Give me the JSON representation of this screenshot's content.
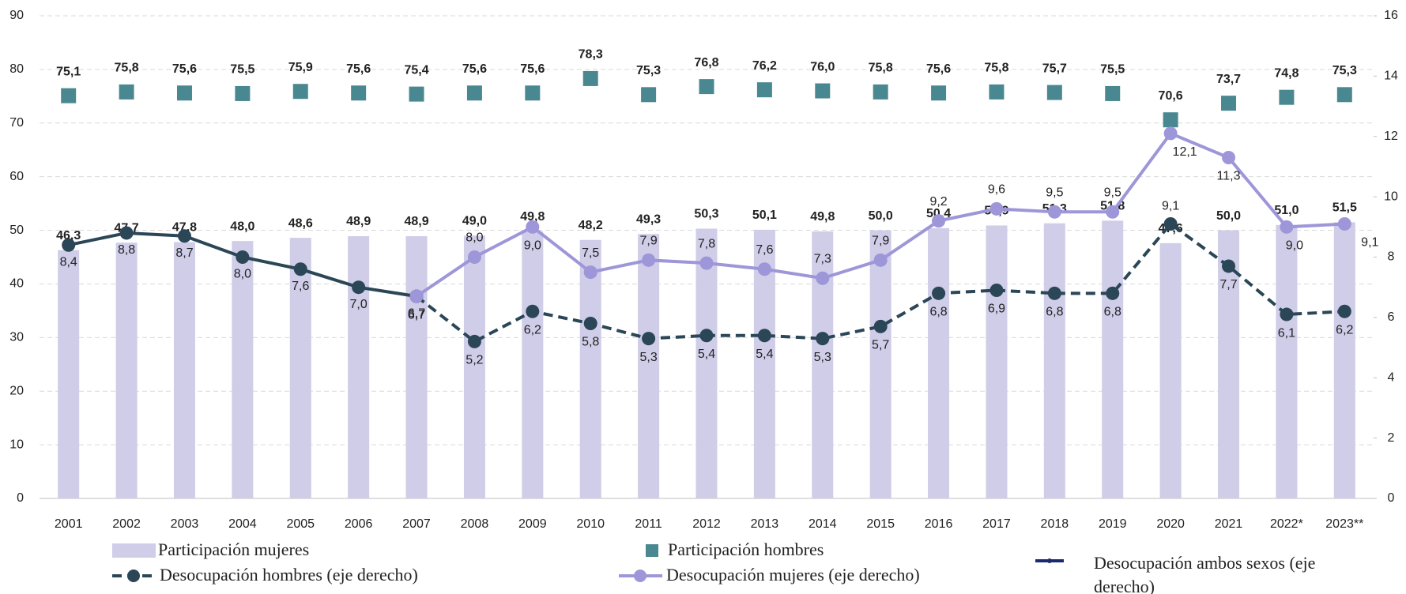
{
  "chart_data": {
    "type": "combo",
    "categories": [
      "2001",
      "2002",
      "2003",
      "2004",
      "2005",
      "2006",
      "2007",
      "2008",
      "2009",
      "2010",
      "2011",
      "2012",
      "2013",
      "2014",
      "2015",
      "2016",
      "2017",
      "2018",
      "2019",
      "2020",
      "2021",
      "2022*",
      "2023**"
    ],
    "ylim": [
      0,
      90
    ],
    "yticks": [
      0,
      10,
      20,
      30,
      40,
      50,
      60,
      70,
      80,
      90
    ],
    "y2lim": [
      0,
      16
    ],
    "y2ticks": [
      0,
      2,
      4,
      6,
      8,
      10,
      12,
      14,
      16
    ],
    "grid": true,
    "series": [
      {
        "name": "Participación mujeres",
        "type": "bar",
        "color": "#cfcde8",
        "values": [
          46.3,
          47.7,
          47.8,
          48.0,
          48.6,
          48.9,
          48.9,
          49.0,
          49.8,
          48.2,
          49.3,
          50.3,
          50.1,
          49.8,
          50.0,
          50.4,
          50.9,
          51.3,
          51.8,
          47.6,
          50.0,
          51.0,
          51.5
        ],
        "value_labels": [
          "46,3",
          "47,7",
          "47,8",
          "48,0",
          "48,6",
          "48,9",
          "48,9",
          "49,0",
          "49,8",
          "48,2",
          "49,3",
          "50,3",
          "50,1",
          "49,8",
          "50,0",
          "50,4",
          "50,9",
          "51,3",
          "51,8",
          "47,6",
          "50,0",
          "51,0",
          "51,5"
        ]
      },
      {
        "name": "Participación hombres",
        "type": "square",
        "color": "#4a8891",
        "values": [
          75.1,
          75.8,
          75.6,
          75.5,
          75.9,
          75.6,
          75.4,
          75.6,
          75.6,
          78.3,
          75.3,
          76.8,
          76.2,
          76.0,
          75.8,
          75.6,
          75.8,
          75.7,
          75.5,
          70.6,
          73.7,
          74.8,
          75.3
        ],
        "value_labels": [
          "75,1",
          "75,8",
          "75,6",
          "75,5",
          "75,9",
          "75,6",
          "75,4",
          "75,6",
          "75,6",
          "78,3",
          "75,3",
          "76,8",
          "76,2",
          "76,0",
          "75,8",
          "75,6",
          "75,8",
          "75,7",
          "75,5",
          "70,6",
          "73,7",
          "74,8",
          "75,3"
        ]
      },
      {
        "name": "Desocupación ambos sexos (eje derecho)",
        "type": "line",
        "axis": "y2",
        "color": "#2b4657",
        "legend_color": "#1a2a6c",
        "line_style": "solid",
        "values": [
          8.4,
          8.8,
          8.7,
          8.0,
          7.6,
          7.0,
          6.7,
          null,
          null,
          null,
          null,
          null,
          null,
          null,
          null,
          null,
          null,
          null,
          null,
          null,
          null,
          null,
          null
        ],
        "value_labels": [
          "8,4",
          "8,8",
          "8,7",
          "8,0",
          "7,6",
          "7,0",
          "6,7",
          null,
          null,
          null,
          null,
          null,
          null,
          null,
          null,
          null,
          null,
          null,
          null,
          null,
          null,
          null,
          null
        ]
      },
      {
        "name": "Desocupación hombres (eje derecho)",
        "type": "line",
        "axis": "y2",
        "color": "#2b4657",
        "line_style": "dashed",
        "values": [
          null,
          null,
          null,
          null,
          null,
          null,
          6.7,
          5.2,
          6.2,
          5.8,
          5.3,
          5.4,
          5.4,
          5.3,
          5.7,
          6.8,
          6.9,
          6.8,
          6.8,
          9.1,
          7.7,
          6.1,
          6.2
        ],
        "value_labels": [
          null,
          null,
          null,
          null,
          null,
          null,
          "6,7",
          "5,2",
          "6,2",
          "5,8",
          "5,3",
          "5,4",
          "5,4",
          "5,3",
          "5,7",
          "6,8",
          "6,9",
          "6,8",
          "6,8",
          "9,1",
          "7,7",
          "6,1",
          "6,2"
        ]
      },
      {
        "name": "Desocupación mujeres (eje derecho)",
        "type": "line",
        "axis": "y2",
        "color": "#9d96d8",
        "line_style": "solid",
        "values": [
          null,
          null,
          null,
          null,
          null,
          null,
          6.7,
          8.0,
          9.0,
          7.5,
          7.9,
          7.8,
          7.6,
          7.3,
          7.9,
          9.2,
          9.6,
          9.5,
          9.5,
          12.1,
          11.3,
          9.0,
          9.1
        ],
        "value_labels": [
          null,
          null,
          null,
          null,
          null,
          null,
          "6,7",
          "8,0",
          "9,0",
          "7,5",
          "7,9",
          "7,8",
          "7,6",
          "7,3",
          "7,9",
          "9,2",
          "9,6",
          "9,5",
          "9,5",
          "12,1",
          "11,3",
          "9,0",
          "9,1"
        ]
      }
    ]
  }
}
